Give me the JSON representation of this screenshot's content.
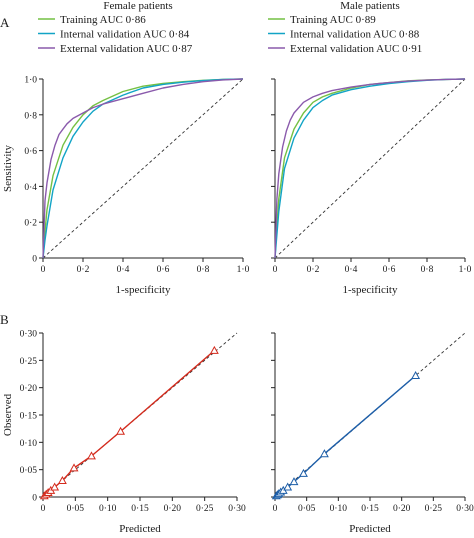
{
  "figure": {
    "panel_a_label": "A",
    "panel_b_label": "B"
  },
  "colors": {
    "training": "#74c043",
    "internal_validation": "#12a4c6",
    "external_validation": "#8a5aac",
    "reference_line": "#333333",
    "axis": "#222222",
    "calibration_female": "#d42a1c",
    "calibration_male": "#1d5ea8"
  },
  "chart_data": [
    {
      "type": "line",
      "panel": "A",
      "title": "Female patients",
      "xlabel": "1-specificity",
      "ylabel": "Sensitivity",
      "xlim": [
        0,
        1
      ],
      "ylim": [
        0,
        1
      ],
      "x_ticks": [
        "0",
        "0·2",
        "0·4",
        "0·6",
        "0·8",
        "1·0"
      ],
      "y_ticks": [
        "0",
        "0·2",
        "0·4",
        "0·6",
        "0·8",
        "1·0"
      ],
      "grid": false,
      "legend_position": "top-left",
      "reference_line": "diagonal dashed",
      "series": [
        {
          "name": "Training AUC 0·86",
          "color_key": "training",
          "x": [
            0,
            0.01,
            0.02,
            0.05,
            0.1,
            0.15,
            0.2,
            0.25,
            0.3,
            0.4,
            0.5,
            0.6,
            0.7,
            0.8,
            0.9,
            1.0
          ],
          "y": [
            0,
            0.15,
            0.27,
            0.46,
            0.63,
            0.73,
            0.8,
            0.85,
            0.88,
            0.93,
            0.96,
            0.975,
            0.985,
            0.993,
            0.998,
            1.0
          ]
        },
        {
          "name": "Internal validation AUC 0·84",
          "color_key": "internal_validation",
          "x": [
            0,
            0.01,
            0.02,
            0.05,
            0.1,
            0.15,
            0.2,
            0.25,
            0.3,
            0.4,
            0.5,
            0.6,
            0.7,
            0.8,
            0.9,
            1.0
          ],
          "y": [
            0,
            0.1,
            0.18,
            0.38,
            0.56,
            0.68,
            0.76,
            0.82,
            0.86,
            0.91,
            0.95,
            0.97,
            0.982,
            0.991,
            0.997,
            1.0
          ]
        },
        {
          "name": "External validation AUC 0·87",
          "color_key": "external_validation",
          "x": [
            0,
            0.01,
            0.02,
            0.04,
            0.06,
            0.08,
            0.1,
            0.12,
            0.15,
            0.2,
            0.25,
            0.3,
            0.4,
            0.5,
            0.6,
            0.7,
            0.8,
            0.9,
            1.0
          ],
          "y": [
            0,
            0.32,
            0.42,
            0.55,
            0.63,
            0.69,
            0.72,
            0.75,
            0.78,
            0.81,
            0.84,
            0.86,
            0.89,
            0.92,
            0.95,
            0.97,
            0.985,
            0.995,
            1.0
          ]
        }
      ]
    },
    {
      "type": "line",
      "panel": "A",
      "title": "Male patients",
      "xlabel": "1-specificity",
      "ylabel": "",
      "xlim": [
        0,
        1
      ],
      "ylim": [
        0,
        1
      ],
      "x_ticks": [
        "0",
        "0·2",
        "0·4",
        "0·6",
        "0·8",
        "1·0"
      ],
      "y_ticks": [],
      "grid": false,
      "legend_position": "top-left",
      "reference_line": "diagonal dashed",
      "series": [
        {
          "name": "Training AUC 0·89",
          "color_key": "training",
          "x": [
            0,
            0.01,
            0.02,
            0.05,
            0.1,
            0.15,
            0.2,
            0.25,
            0.3,
            0.4,
            0.5,
            0.6,
            0.7,
            0.8,
            0.9,
            1.0
          ],
          "y": [
            0,
            0.18,
            0.33,
            0.56,
            0.72,
            0.81,
            0.87,
            0.9,
            0.92,
            0.95,
            0.97,
            0.98,
            0.99,
            0.995,
            0.998,
            1.0
          ]
        },
        {
          "name": "Internal validation AUC 0·88",
          "color_key": "internal_validation",
          "x": [
            0,
            0.01,
            0.02,
            0.05,
            0.1,
            0.15,
            0.2,
            0.25,
            0.3,
            0.4,
            0.5,
            0.6,
            0.7,
            0.8,
            0.9,
            1.0
          ],
          "y": [
            0,
            0.13,
            0.26,
            0.5,
            0.67,
            0.77,
            0.84,
            0.88,
            0.91,
            0.94,
            0.96,
            0.975,
            0.985,
            0.993,
            0.998,
            1.0
          ]
        },
        {
          "name": "External validation AUC 0·91",
          "color_key": "external_validation",
          "x": [
            0,
            0.01,
            0.02,
            0.04,
            0.06,
            0.08,
            0.1,
            0.15,
            0.2,
            0.25,
            0.3,
            0.4,
            0.5,
            0.6,
            0.7,
            0.8,
            0.9,
            1.0
          ],
          "y": [
            0,
            0.33,
            0.47,
            0.62,
            0.71,
            0.77,
            0.81,
            0.87,
            0.9,
            0.92,
            0.935,
            0.955,
            0.97,
            0.98,
            0.988,
            0.994,
            0.998,
            1.0
          ]
        }
      ]
    },
    {
      "type": "line",
      "panel": "B",
      "title": "",
      "xlabel": "Predicted",
      "ylabel": "Observed",
      "xlim": [
        0,
        0.3
      ],
      "ylim": [
        0,
        0.3
      ],
      "x_ticks": [
        "0",
        "0·05",
        "0·10",
        "0·15",
        "0·20",
        "0·25",
        "0·30"
      ],
      "y_ticks": [
        "0",
        "0·05",
        "0·10",
        "0·15",
        "0·20",
        "0·25",
        "0·30"
      ],
      "grid": false,
      "reference_line": "diagonal dashed",
      "series": [
        {
          "color_key": "calibration_female",
          "marker": "triangle",
          "x": [
            0.002,
            0.005,
            0.008,
            0.012,
            0.018,
            0.03,
            0.048,
            0.075,
            0.12,
            0.265
          ],
          "y": [
            0.002,
            0.005,
            0.008,
            0.012,
            0.018,
            0.03,
            0.053,
            0.075,
            0.12,
            0.268
          ]
        }
      ]
    },
    {
      "type": "line",
      "panel": "B",
      "title": "",
      "xlabel": "Predicted",
      "ylabel": "",
      "xlim": [
        0,
        0.3
      ],
      "ylim": [
        0,
        0.3
      ],
      "x_ticks": [
        "0",
        "0·05",
        "0·10",
        "0·15",
        "0·20",
        "0·25",
        "0·30"
      ],
      "y_ticks": [],
      "grid": false,
      "reference_line": "diagonal dashed",
      "series": [
        {
          "color_key": "calibration_male",
          "marker": "triangle",
          "x": [
            0.002,
            0.004,
            0.006,
            0.009,
            0.013,
            0.02,
            0.03,
            0.045,
            0.078,
            0.222
          ],
          "y": [
            0.002,
            0.004,
            0.006,
            0.009,
            0.012,
            0.018,
            0.028,
            0.043,
            0.079,
            0.222
          ]
        }
      ]
    }
  ]
}
